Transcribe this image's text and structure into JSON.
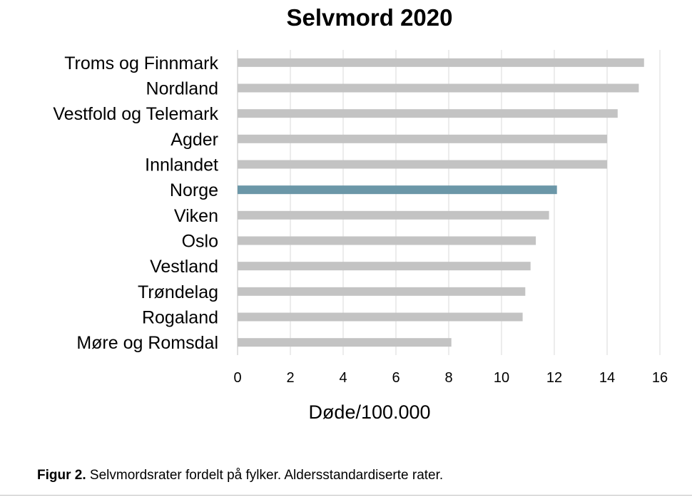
{
  "chart_data": {
    "type": "bar",
    "orientation": "horizontal",
    "title": "Selvmord 2020",
    "xlabel": "Døde/100.000",
    "ylabel": "",
    "xlim": [
      0,
      16
    ],
    "xticks": [
      0,
      2,
      4,
      6,
      8,
      10,
      12,
      14,
      16
    ],
    "grid": "vertical",
    "legend": "none",
    "categories": [
      "Troms og Finnmark",
      "Nordland",
      "Vestfold og Telemark",
      "Agder",
      "Innlandet",
      "Norge",
      "Viken",
      "Oslo",
      "Vestland",
      "Trøndelag",
      "Rogaland",
      "Møre og Romsdal"
    ],
    "values": [
      15.4,
      15.2,
      14.4,
      14.0,
      14.0,
      12.1,
      11.8,
      11.3,
      11.1,
      10.9,
      10.8,
      8.1
    ],
    "colors": {
      "default_bar": "#c3c3c3",
      "highlight_bar": "#6b97a8",
      "gridline": "#d9d9d9"
    },
    "highlight_category": "Norge"
  },
  "caption": {
    "label": "Figur 2.",
    "text": " Selvmordsrater fordelt på fylker. Aldersstandardiserte rater."
  }
}
